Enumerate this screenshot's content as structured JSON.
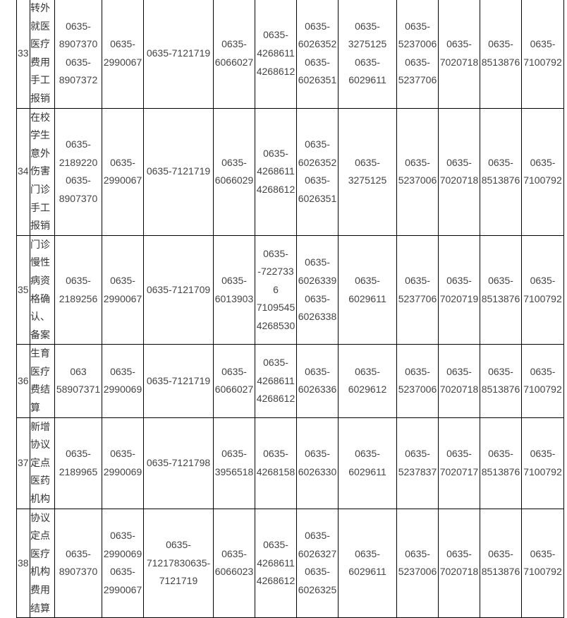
{
  "table": {
    "rows": [
      {
        "no": "33",
        "name": "转外就医医疗费用手工报销",
        "cells": [
          [
            "0635-8907370",
            "0635-8907372"
          ],
          [
            "0635-2990067"
          ],
          [
            "0635-7121719"
          ],
          [
            "0635-6066027"
          ],
          [
            "0635-4268611",
            "4268612"
          ],
          [
            "0635-6026352",
            "0635-6026351"
          ],
          [
            "0635-3275125",
            "0635-6029611"
          ],
          [
            "0635-5237006",
            "0635-5237706"
          ],
          [
            "0635-7020718"
          ],
          [
            "0635-8513876"
          ],
          [
            "0635-7100792"
          ]
        ]
      },
      {
        "no": "34",
        "name": "在校学生意外伤害门诊手工报销",
        "cells": [
          [
            "0635-2189220",
            "0635-8907370"
          ],
          [
            "0635-2990067"
          ],
          [
            "0635-7121719"
          ],
          [
            "0635-6066029"
          ],
          [
            "0635-4268611",
            "4268612"
          ],
          [
            "0635-6026352",
            "0635-6026351"
          ],
          [
            "0635-3275125"
          ],
          [
            "0635-5237006"
          ],
          [
            "0635-7020718"
          ],
          [
            "0635-8513876"
          ],
          [
            "0635-7100792"
          ]
        ]
      },
      {
        "no": "35",
        "name": "门诊慢性病资格确认、备案",
        "cells": [
          [
            "0635-2189256"
          ],
          [
            "0635-2990067"
          ],
          [
            "0635-7121709"
          ],
          [
            "0635-6013903"
          ],
          [
            "0635--7227336",
            "7109545",
            "4268530"
          ],
          [
            "0635-6026339",
            "0635-6026338"
          ],
          [
            "0635-6029611"
          ],
          [
            "0635-5237706"
          ],
          [
            "0635-7020719"
          ],
          [
            "0635-8513876"
          ],
          [
            "0635-7100792"
          ]
        ]
      },
      {
        "no": "36",
        "name": "生育医疗费结算",
        "cells": [
          [
            "063 58907371"
          ],
          [
            "0635-2990069"
          ],
          [
            "0635-7121719"
          ],
          [
            "0635-6066027"
          ],
          [
            "0635-4268611",
            "4268612"
          ],
          [
            "0635-6026336"
          ],
          [
            "0635-6029612"
          ],
          [
            "0635-5237006"
          ],
          [
            "0635-7020718"
          ],
          [
            "0635-8513876"
          ],
          [
            "0635-7100792"
          ]
        ]
      },
      {
        "no": "37",
        "name": "新增协议定点医药机构",
        "cells": [
          [
            "0635-2189965"
          ],
          [
            "0635-2990069"
          ],
          [
            "0635-7121798"
          ],
          [
            "0635-3956518"
          ],
          [
            "0635-4268158"
          ],
          [
            "0635-6026330"
          ],
          [
            "0635-6029611"
          ],
          [
            "0635-5237837"
          ],
          [
            "0635-7020717"
          ],
          [
            "0635-8513876"
          ],
          [
            "0635-7100792"
          ]
        ]
      },
      {
        "no": "38",
        "name": "协议定点医疗机构费用结算",
        "cells": [
          [
            "0635-8907370"
          ],
          [
            "0635-2990069",
            "0635-2990067"
          ],
          [
            "0635-71217830635-7121719"
          ],
          [
            "0635-6066023"
          ],
          [
            "0635-4268611",
            "4268612"
          ],
          [
            "0635-6026327",
            "0635-6026325"
          ],
          [
            "0635-6029611"
          ],
          [
            "0635-5237006"
          ],
          [
            "0635-7020718"
          ],
          [
            "0635-8513876"
          ],
          [
            "0635-7100792"
          ]
        ]
      }
    ]
  }
}
